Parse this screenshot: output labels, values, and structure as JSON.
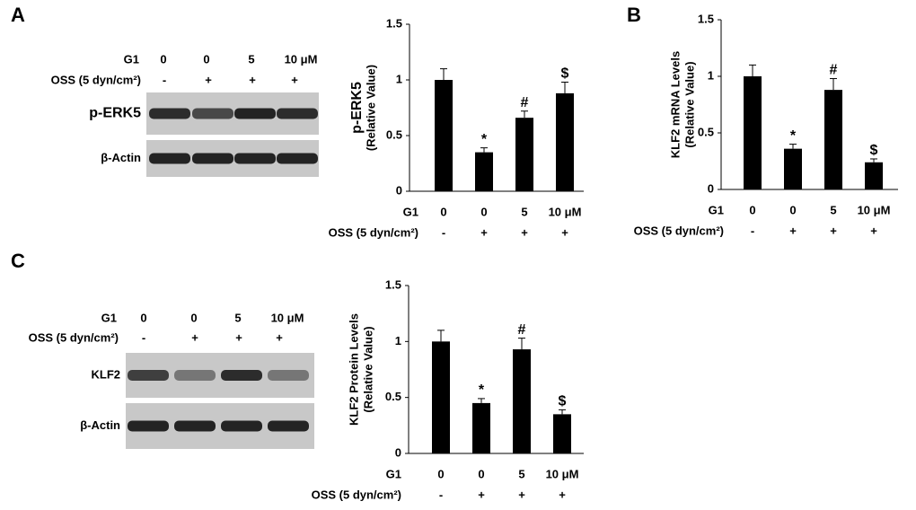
{
  "panel_labels": [
    "A",
    "B",
    "C"
  ],
  "blots": [
    {
      "row_labels": [
        "G1",
        "OSS (5 dyn/cm²)"
      ],
      "g1": [
        "0",
        "0",
        "5",
        "10 μM"
      ],
      "oss": [
        "-",
        "+",
        "+",
        "+"
      ],
      "bands": [
        "p-ERK5",
        "β-Actin"
      ]
    },
    {
      "row_labels": [
        "G1",
        "OSS (5 dyn/cm²)"
      ],
      "g1": [
        "0",
        "0",
        "5",
        "10 μM"
      ],
      "oss": [
        "-",
        "+",
        "+",
        "+"
      ],
      "bands": [
        "KLF2",
        "β-Actin"
      ]
    }
  ],
  "chart_data": [
    {
      "type": "bar",
      "ylabel": [
        "p-ERK5",
        "(Relative Value)"
      ],
      "xrow_labels": [
        "G1",
        "OSS (5 dyn/cm²)"
      ],
      "categories": [
        "0",
        "0",
        "5",
        "10 μM"
      ],
      "categories2": [
        "-",
        "+",
        "+",
        "+"
      ],
      "values": [
        1.0,
        0.35,
        0.66,
        0.88
      ],
      "errors": [
        0.1,
        0.04,
        0.06,
        0.1
      ],
      "annotations": [
        null,
        "*",
        "#",
        "$"
      ],
      "color": "#000000",
      "ylim": [
        0,
        1.5
      ],
      "yticks": [
        0,
        0.5,
        1,
        1.5
      ]
    },
    {
      "type": "bar",
      "ylabel": [
        "KLF2  mRNA Levels",
        "(Relative Value)"
      ],
      "xrow_labels": [
        "G1",
        "OSS (5 dyn/cm²)"
      ],
      "categories": [
        "0",
        "0",
        "5",
        "10 μM"
      ],
      "categories2": [
        "-",
        "+",
        "+",
        "+"
      ],
      "values": [
        1.0,
        0.36,
        0.88,
        0.24
      ],
      "errors": [
        0.1,
        0.04,
        0.1,
        0.03
      ],
      "annotations": [
        null,
        "*",
        "#",
        "$"
      ],
      "color": "#000000",
      "ylim": [
        0,
        1.5
      ],
      "yticks": [
        0,
        0.5,
        1,
        1.5
      ]
    },
    {
      "type": "bar",
      "ylabel": [
        "KLF2 Protein Levels",
        "(Relative Value)"
      ],
      "xrow_labels": [
        "G1",
        "OSS (5 dyn/cm²)"
      ],
      "categories": [
        "0",
        "0",
        "5",
        "10 μM"
      ],
      "categories2": [
        "-",
        "+",
        "+",
        "+"
      ],
      "values": [
        1.0,
        0.45,
        0.93,
        0.35
      ],
      "errors": [
        0.1,
        0.04,
        0.1,
        0.04
      ],
      "annotations": [
        null,
        "*",
        "#",
        "$"
      ],
      "color": "#000000",
      "ylim": [
        0,
        1.5
      ],
      "yticks": [
        0,
        0.5,
        1,
        1.5
      ]
    }
  ]
}
